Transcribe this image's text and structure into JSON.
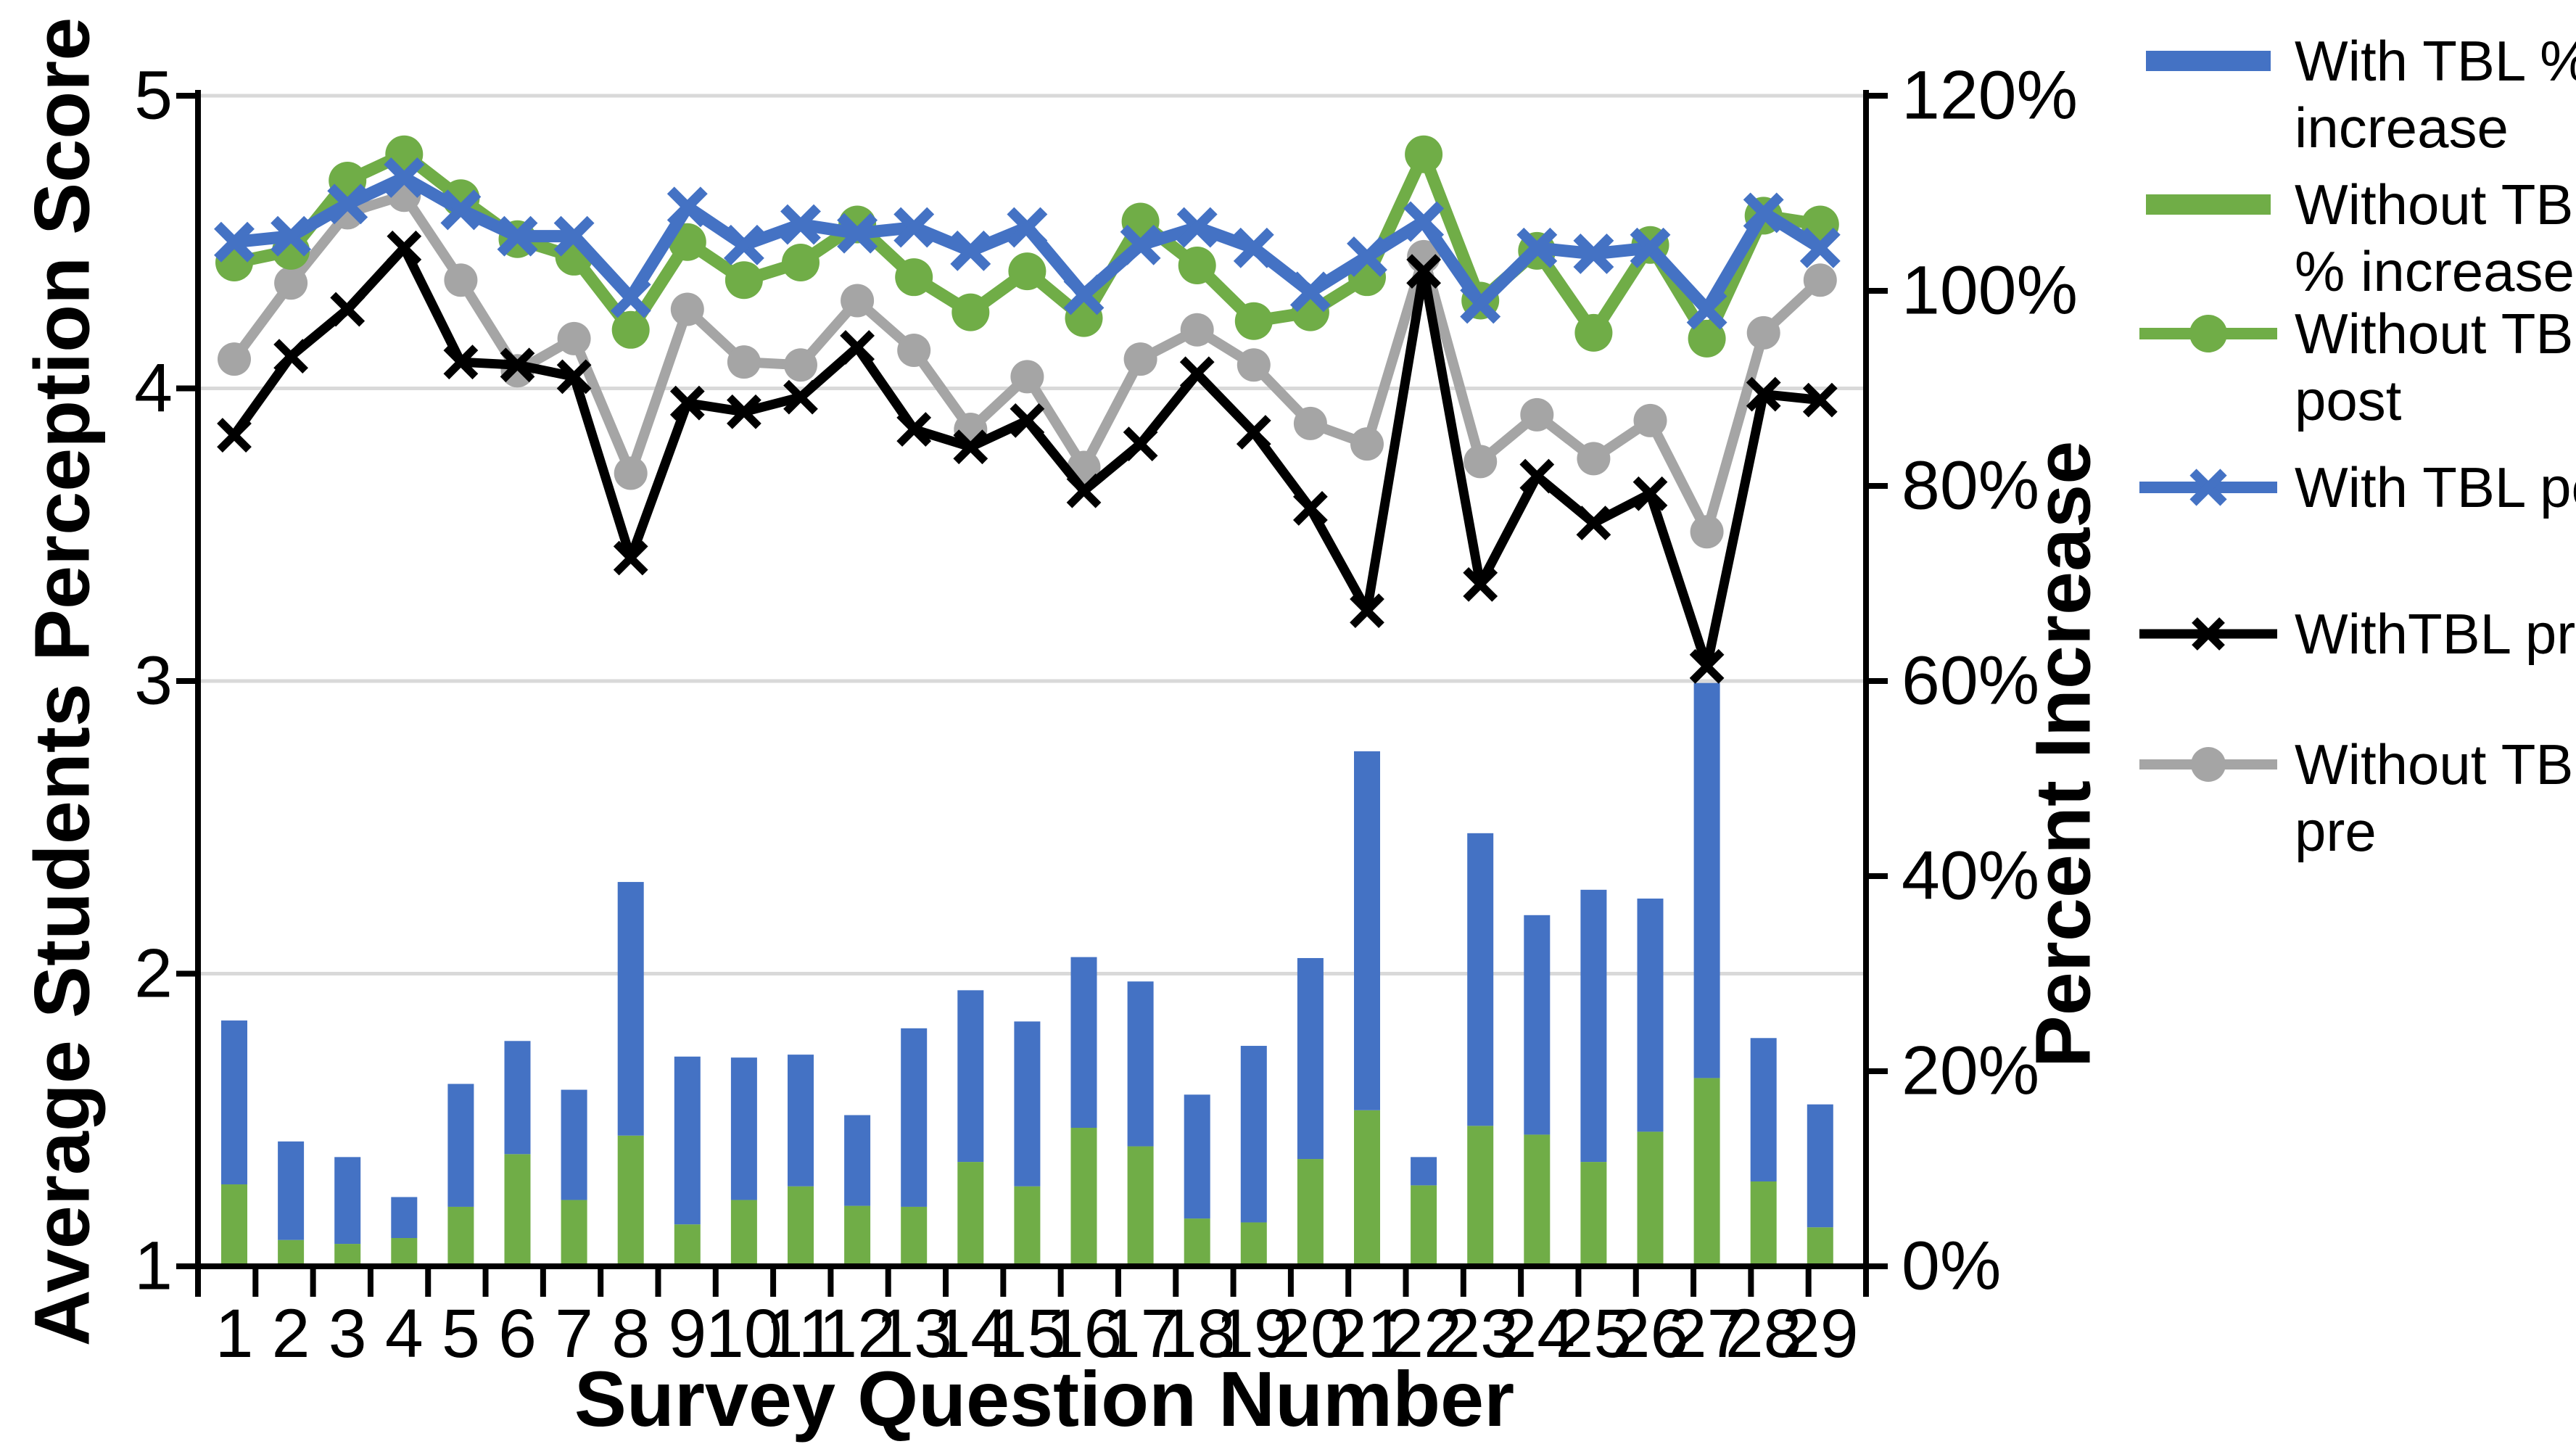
{
  "chart_data": {
    "type": "bar",
    "subtype": "combo-stacked-bar-with-lines-dual-axis",
    "title": "",
    "xlabel": "Survey Question Number",
    "ylabel_left": "Average Students Perception Score",
    "ylabel_right": "Percent Increase",
    "categories": [
      1,
      2,
      3,
      4,
      5,
      6,
      7,
      8,
      9,
      10,
      11,
      12,
      13,
      14,
      15,
      16,
      17,
      18,
      19,
      20,
      21,
      22,
      23,
      24,
      25,
      26,
      27,
      28,
      29
    ],
    "ylim_left": [
      1,
      5
    ],
    "ylim_right_percent": [
      0,
      120
    ],
    "y_left_tick_labels": [
      "5",
      "4",
      "3",
      "2",
      "1"
    ],
    "y_left_tick_values": [
      5,
      4,
      3,
      2,
      1
    ],
    "y_right_tick_labels": [
      "120%",
      "100%",
      "80%",
      "60%",
      "40%",
      "20%",
      "0%"
    ],
    "y_right_tick_values": [
      120,
      100,
      80,
      60,
      40,
      20,
      0
    ],
    "grid": "horizontal gridlines at left-axis integers",
    "legend_position": "right",
    "colors": {
      "blue": "#4472C4",
      "green": "#70AD47",
      "black": "#000000",
      "gray": "#A5A5A5",
      "gridline": "#D9D9D9",
      "axis": "#000000"
    },
    "series": [
      {
        "name": "With TBL % increase",
        "type": "bar",
        "axis": "right",
        "stack": "top",
        "color": "#4472C4",
        "values_percent": [
          16.8,
          10.1,
          8.9,
          4.2,
          12.6,
          11.6,
          11.3,
          26.0,
          17.2,
          14.6,
          13.5,
          9.3,
          18.3,
          17.6,
          16.9,
          17.5,
          16.9,
          12.7,
          18.1,
          20.6,
          36.8,
          2.9,
          30.0,
          22.5,
          27.9,
          23.9,
          40.5,
          14.7,
          12.6
        ]
      },
      {
        "name": "Without TBL % increase",
        "type": "bar",
        "axis": "right",
        "stack": "bottom",
        "color": "#70AD47",
        "values_percent": [
          8.4,
          2.7,
          2.3,
          2.9,
          6.1,
          11.5,
          6.8,
          13.4,
          4.3,
          6.8,
          8.2,
          6.2,
          6.1,
          10.7,
          8.2,
          14.2,
          12.3,
          4.9,
          4.5,
          11.0,
          16.0,
          8.3,
          14.4,
          13.5,
          10.7,
          13.8,
          19.3,
          8.7,
          4.0
        ]
      },
      {
        "name": "Without TBL post",
        "type": "line",
        "axis": "left",
        "marker": "circle",
        "color": "#70AD47",
        "values": [
          4.43,
          4.47,
          4.71,
          4.8,
          4.65,
          4.51,
          4.45,
          4.2,
          4.5,
          4.37,
          4.43,
          4.56,
          4.38,
          4.26,
          4.4,
          4.24,
          4.57,
          4.42,
          4.23,
          4.26,
          4.38,
          4.8,
          4.3,
          4.47,
          4.19,
          4.49,
          4.17,
          4.59,
          4.56
        ]
      },
      {
        "name": "With TBL post",
        "type": "line",
        "axis": "left",
        "marker": "x",
        "color": "#4472C4",
        "values": [
          4.5,
          4.52,
          4.63,
          4.72,
          4.61,
          4.52,
          4.52,
          4.31,
          4.62,
          4.49,
          4.56,
          4.53,
          4.55,
          4.47,
          4.55,
          4.32,
          4.49,
          4.55,
          4.48,
          4.33,
          4.45,
          4.57,
          4.29,
          4.48,
          4.46,
          4.48,
          4.27,
          4.6,
          4.48
        ]
      },
      {
        "name": "WithTBL pre",
        "type": "line",
        "axis": "left",
        "marker": "x",
        "color": "#000000",
        "values": [
          3.84,
          4.11,
          4.27,
          4.48,
          4.09,
          4.08,
          4.04,
          3.42,
          3.95,
          3.92,
          3.97,
          4.14,
          3.86,
          3.8,
          3.89,
          3.65,
          3.81,
          4.05,
          3.85,
          3.59,
          3.24,
          4.4,
          3.33,
          3.7,
          3.54,
          3.64,
          3.05,
          3.98,
          3.96
        ]
      },
      {
        "name": "Without TBL pre",
        "type": "line",
        "axis": "left",
        "marker": "circle",
        "color": "#A5A5A5",
        "values": [
          4.1,
          4.36,
          4.6,
          4.66,
          4.37,
          4.06,
          4.17,
          3.71,
          4.27,
          4.09,
          4.08,
          4.3,
          4.13,
          3.86,
          4.04,
          3.73,
          4.1,
          4.2,
          4.08,
          3.88,
          3.81,
          4.45,
          3.75,
          3.91,
          3.76,
          3.89,
          3.51,
          4.19,
          4.37
        ]
      }
    ]
  },
  "axes": {
    "x_title": "Survey Question Number",
    "y_left_title": "Average Students Perception Score",
    "y_right_title": "Percent Increase"
  },
  "legend": {
    "items": [
      {
        "label": "With TBL % increase",
        "swatch": "bar",
        "color": "#4472C4"
      },
      {
        "label": "Without TBL % increase",
        "swatch": "bar",
        "color": "#70AD47"
      },
      {
        "label": "Without TBL post",
        "swatch": "line-circle",
        "color": "#70AD47"
      },
      {
        "label": "With TBL post",
        "swatch": "line-x",
        "color": "#4472C4"
      },
      {
        "label": "WithTBL pre",
        "swatch": "line-x",
        "color": "#000000"
      },
      {
        "label": "Without TBL pre",
        "swatch": "line-circle",
        "color": "#A5A5A5"
      }
    ]
  }
}
